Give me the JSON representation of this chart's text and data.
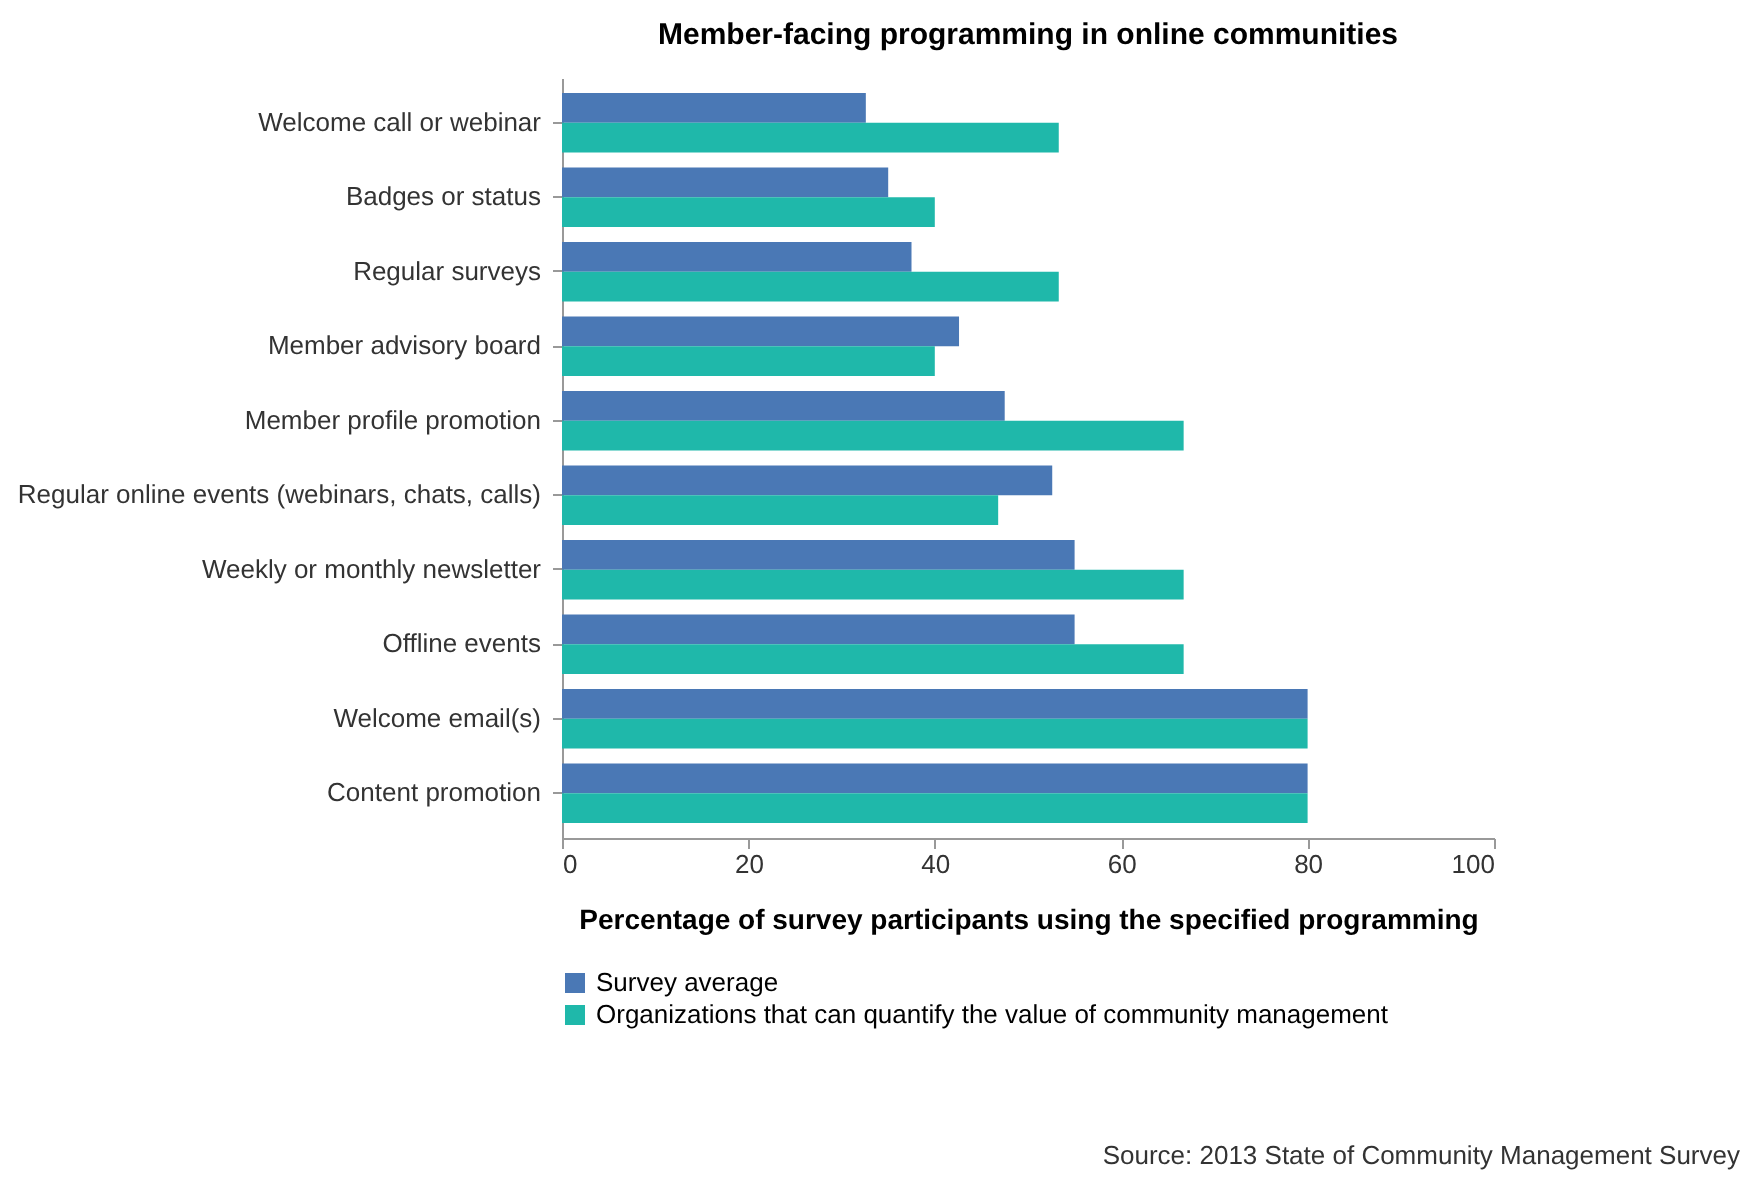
{
  "chart_data": {
    "type": "bar",
    "orientation": "horizontal",
    "title": "Member-facing programming in online communities",
    "xlabel": "Percentage of survey participants using the specified programming",
    "categories": [
      "Welcome call or webinar",
      "Badges or status",
      "Regular surveys",
      "Member advisory board",
      "Member profile promotion",
      "Regular online events (webinars, chats, calls)",
      "Weekly or monthly newsletter",
      "Offline events",
      "Welcome email(s)",
      "Content promotion"
    ],
    "series": [
      {
        "name": "Survey average",
        "color": "#4a78b5",
        "values": [
          32.6,
          35,
          37.5,
          42.6,
          47.5,
          52.6,
          55,
          55,
          80,
          80
        ]
      },
      {
        "name": "Organizations that can quantify the value of community management",
        "color": "#1fb8aa",
        "values": [
          53.3,
          40,
          53.3,
          40,
          66.7,
          46.8,
          66.7,
          66.7,
          80,
          80
        ]
      }
    ],
    "xlim": [
      0,
      100
    ],
    "xticks": [
      0,
      20,
      40,
      60,
      80,
      100
    ],
    "grid": false,
    "legend": "bottom",
    "annotations": [
      "Source: 2013 State of Community Management Survey"
    ]
  }
}
